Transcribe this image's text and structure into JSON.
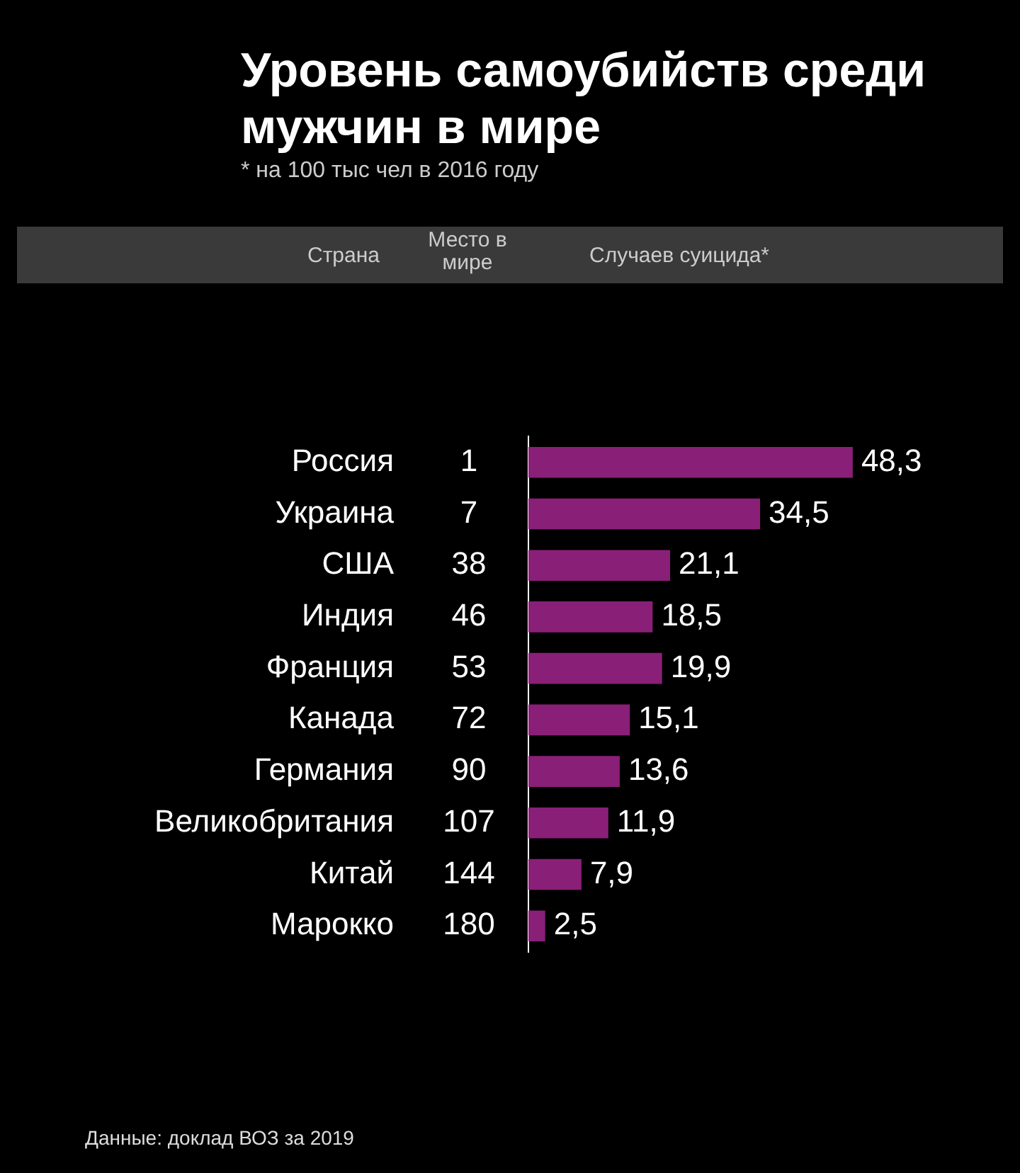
{
  "chart_data": {
    "type": "bar",
    "orientation": "horizontal",
    "title": "Уровень самоубийств среди мужчин в мире",
    "subtitle": "* на 100 тыс чел в 2016 году",
    "categories": [
      "Россия",
      "Украина",
      "США",
      "Индия",
      "Франция",
      "Канада",
      "Германия",
      "Великобритания",
      "Китай",
      "Марокко"
    ],
    "values": [
      48.3,
      34.5,
      21.1,
      18.5,
      19.9,
      15.1,
      13.6,
      11.9,
      7.9,
      2.5
    ],
    "value_labels": [
      "48,3",
      "34,5",
      "21,1",
      "18,5",
      "19,9",
      "15,1",
      "13,6",
      "11,9",
      "7,9",
      "2,5"
    ],
    "color": "#8a1f78",
    "annotations": [
      "Страна",
      "Место в мире",
      "Случаев суицида*",
      "1",
      "7",
      "38",
      "46",
      "53",
      "72",
      "90",
      "107",
      "144",
      "180",
      "Данные: доклад ВОЗ за 2019"
    ]
  }
}
